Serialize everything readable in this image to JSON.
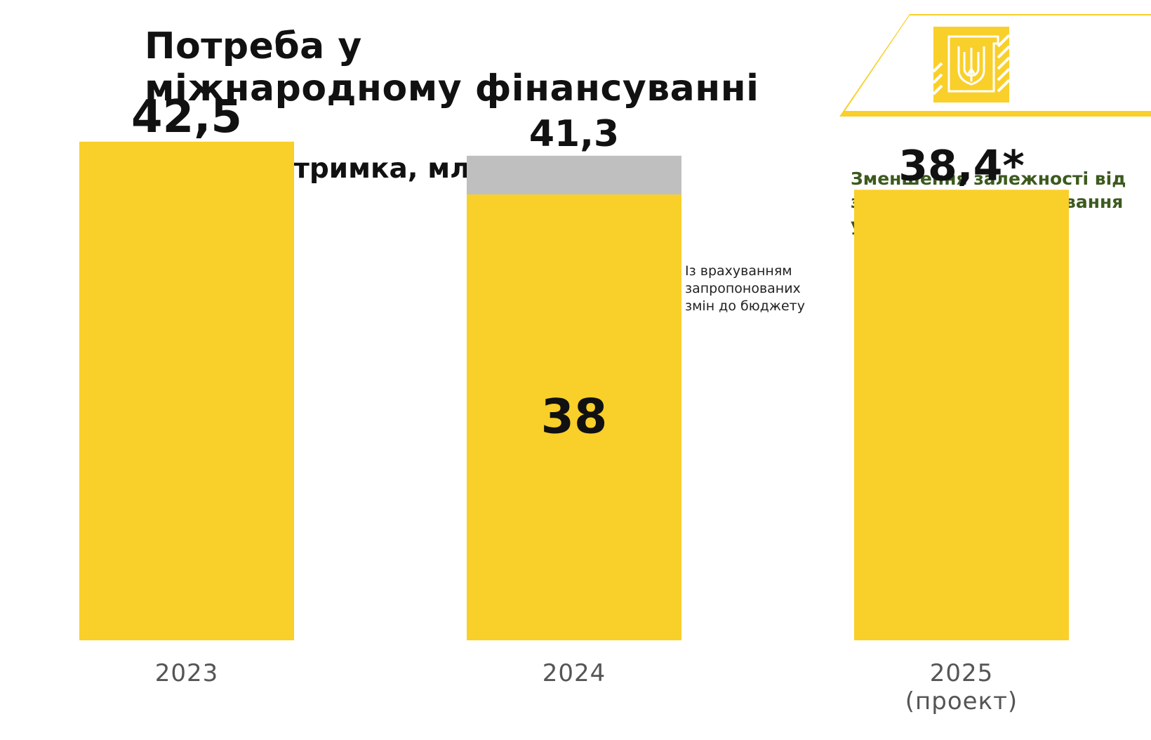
{
  "header": {
    "title_line1": "Потреба у",
    "title_line2": "міжнародному фінансуванні",
    "accent_color": "#F9CF2A",
    "logo_icon": "trident-coat-of-arms-icon"
  },
  "side_note": {
    "line1": "Зменшення залежності від",
    "line2": "зовнішнього фінансування",
    "line3": "у 2025",
    "color": "#3C5A1E"
  },
  "chart_data": {
    "type": "bar",
    "title": "Зовнішня підтримка, млрд дол. США",
    "xlabel": "",
    "ylabel": "",
    "ylim": [
      0,
      45
    ],
    "categories": [
      "2023",
      "2024",
      "2025"
    ],
    "category_sublabels": [
      "",
      "",
      "(проект)"
    ],
    "series": [
      {
        "name": "base",
        "values": [
          42.5,
          38,
          38.4
        ],
        "color": "#F9CF2A"
      },
      {
        "name": "Із врахуванням запропонованих змін до бюджету",
        "values": [
          0,
          3.3,
          0
        ],
        "color": "#BFBFBF"
      }
    ],
    "total_labels": [
      "42,5",
      "41,3",
      "38,4*"
    ],
    "inner_labels": [
      "",
      "38",
      ""
    ],
    "annotation": {
      "lines": [
        "Із врахуванням",
        "запропонованих",
        "змін до бюджету"
      ]
    },
    "grid": false,
    "legend": "none"
  }
}
